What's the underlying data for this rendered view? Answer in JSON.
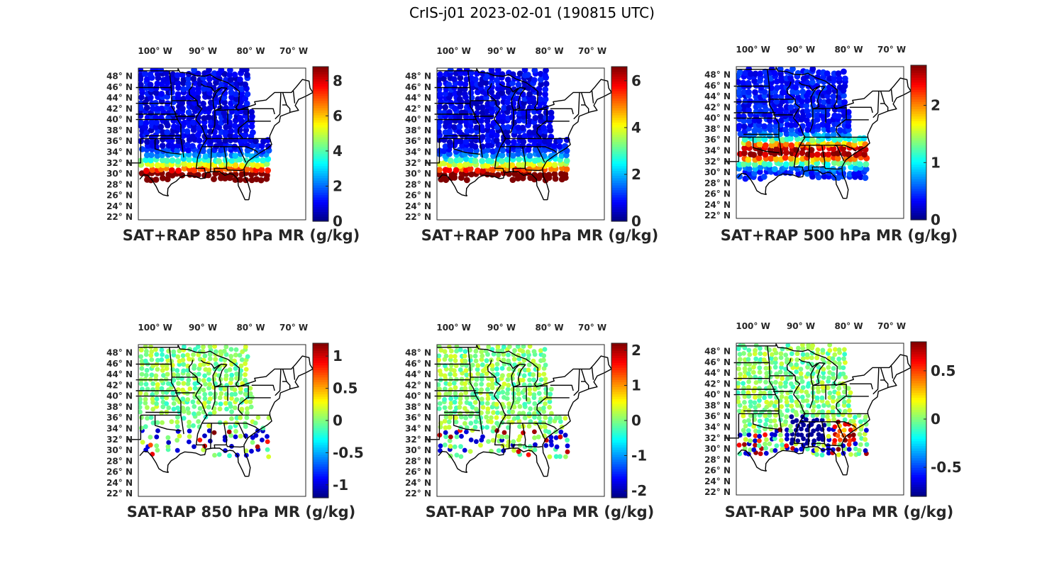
{
  "figure": {
    "title": "CrIS-j01 2023-02-01 (190815 UTC)"
  },
  "lon_ticks": [
    "100° W",
    "90° W",
    "80° W",
    "70° W"
  ],
  "lat_ticks": [
    "48° N",
    "46° N",
    "44° N",
    "42° N",
    "40° N",
    "38° N",
    "36° N",
    "34° N",
    "32° N",
    "30° N",
    "28° N",
    "26° N",
    "24° N",
    "22° N"
  ],
  "colormap": "jet",
  "colors": {
    "map_border": "#000000",
    "state_lines": "#000000"
  },
  "panels": [
    {
      "title": "SAT+RAP 850 hPa MR (g/kg)",
      "field": "mixing-ratio",
      "clim": [
        0,
        8.8
      ],
      "colorbar_ticks": [
        {
          "v": 0,
          "label": "0"
        },
        {
          "v": 2,
          "label": "2"
        },
        {
          "v": 4,
          "label": "4"
        },
        {
          "v": 6,
          "label": "6"
        },
        {
          "v": 8,
          "label": "8"
        }
      ]
    },
    {
      "title": "SAT+RAP 700 hPa MR (g/kg)",
      "field": "mixing-ratio",
      "clim": [
        0,
        6.6
      ],
      "colorbar_ticks": [
        {
          "v": 0,
          "label": "0"
        },
        {
          "v": 2,
          "label": "2"
        },
        {
          "v": 4,
          "label": "4"
        },
        {
          "v": 6,
          "label": "6"
        }
      ]
    },
    {
      "title": "SAT+RAP 500 hPa MR (g/kg)",
      "field": "mixing-ratio",
      "clim": [
        0,
        2.7
      ],
      "colorbar_ticks": [
        {
          "v": 0,
          "label": "0"
        },
        {
          "v": 1,
          "label": "1"
        },
        {
          "v": 2,
          "label": "2"
        }
      ]
    },
    {
      "title": "SAT-RAP 850 hPa MR (g/kg)",
      "field": "difference",
      "clim": [
        -1.2,
        1.2
      ],
      "colorbar_ticks": [
        {
          "v": -1,
          "label": "-1"
        },
        {
          "v": -0.5,
          "label": "-0.5"
        },
        {
          "v": 0,
          "label": "0"
        },
        {
          "v": 0.5,
          "label": "0.5"
        },
        {
          "v": 1,
          "label": "1"
        }
      ]
    },
    {
      "title": "SAT-RAP 700 hPa MR (g/kg)",
      "field": "difference",
      "clim": [
        -2.2,
        2.2
      ],
      "colorbar_ticks": [
        {
          "v": -2,
          "label": "-2"
        },
        {
          "v": -1,
          "label": "-1"
        },
        {
          "v": 0,
          "label": "0"
        },
        {
          "v": 1,
          "label": "1"
        },
        {
          "v": 2,
          "label": "2"
        }
      ]
    },
    {
      "title": "SAT-RAP 500 hPa MR (g/kg)",
      "field": "difference",
      "clim": [
        -0.8,
        0.8
      ],
      "colorbar_ticks": [
        {
          "v": -0.5,
          "label": "-0.5"
        },
        {
          "v": 0,
          "label": "0"
        },
        {
          "v": 0.5,
          "label": "0.5"
        }
      ]
    }
  ]
}
